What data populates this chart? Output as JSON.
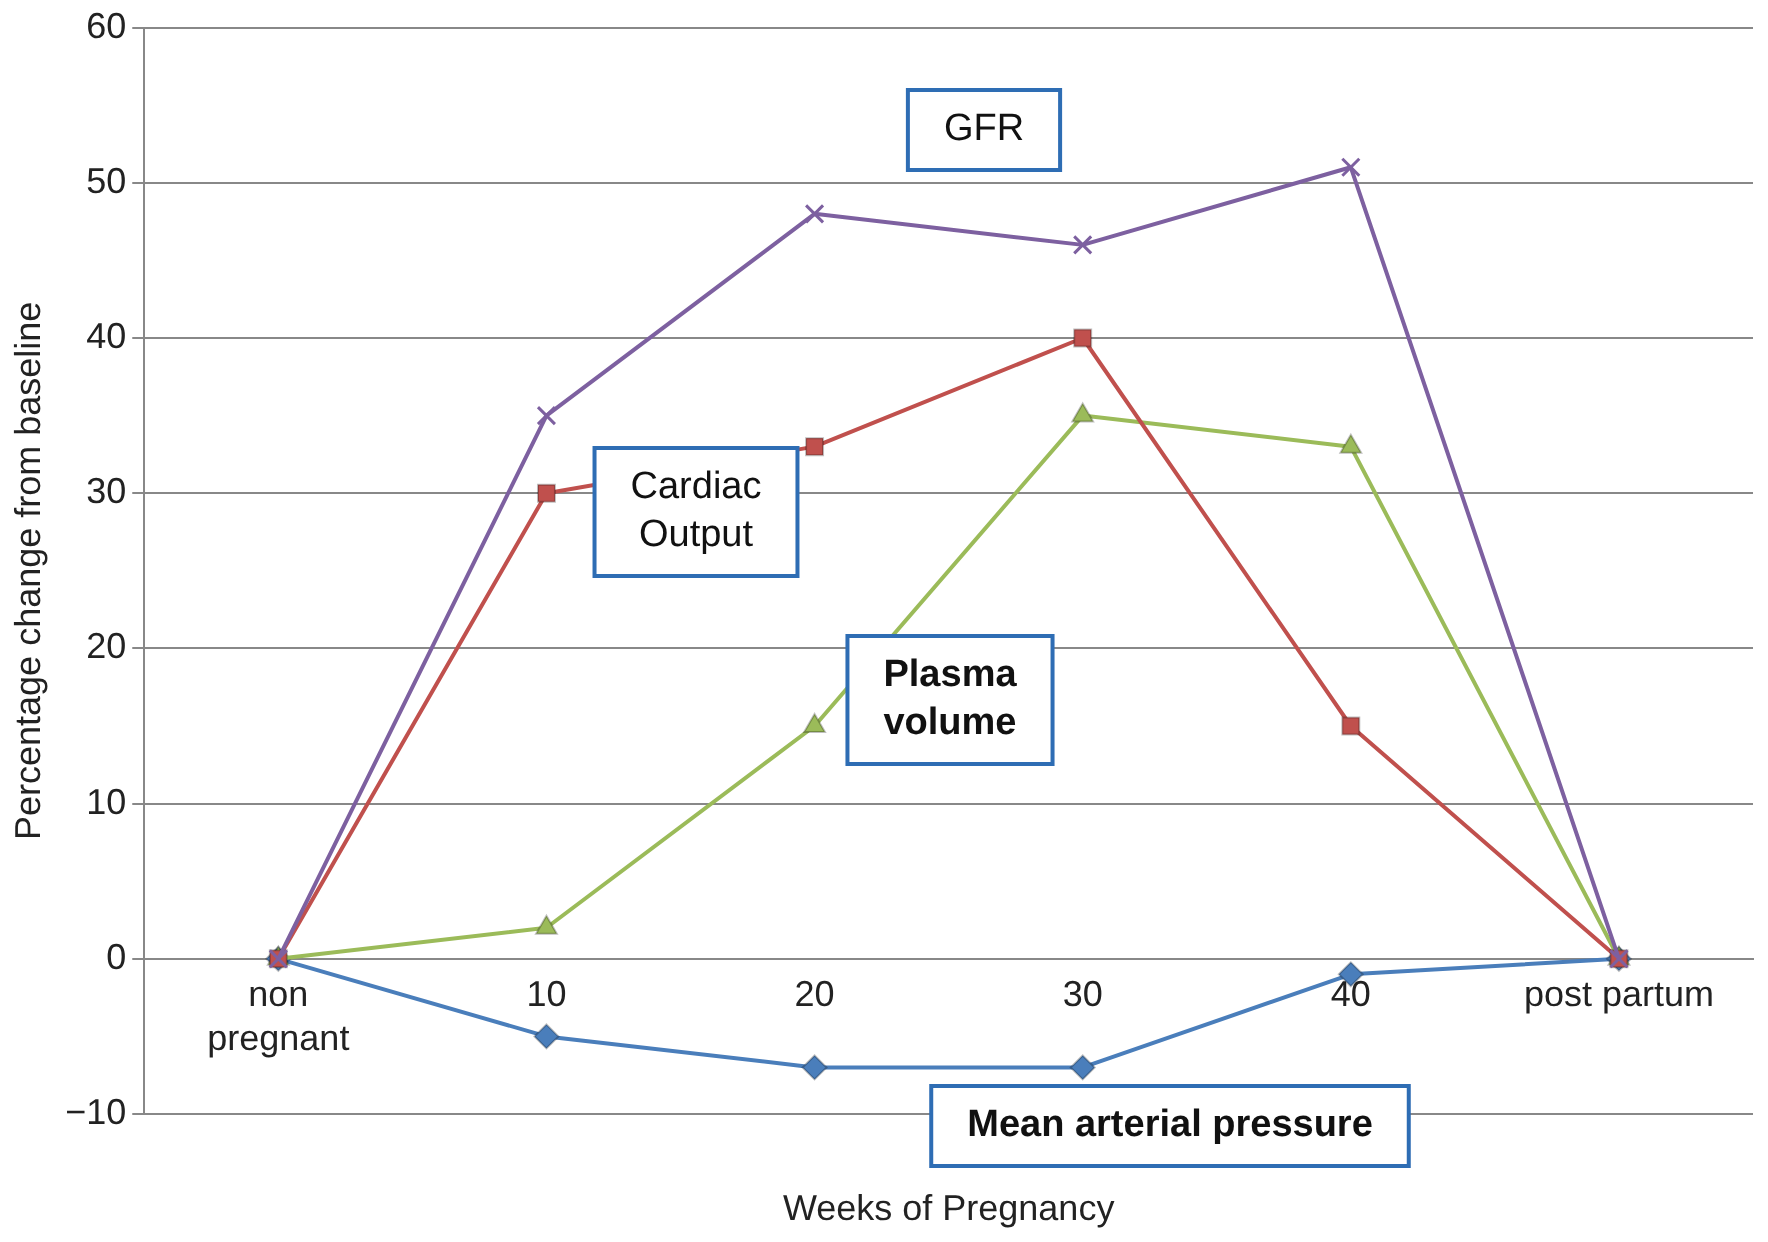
{
  "chart_data": {
    "type": "line",
    "xlabel": "Weeks of Pregnancy",
    "ylabel": "Percentage change from baseline",
    "categories": [
      "non pregnant",
      "10",
      "20",
      "30",
      "40",
      "post partum"
    ],
    "series": [
      {
        "name": "GFR",
        "color": "#7d60a0",
        "marker": "cross",
        "values": [
          0,
          35,
          48,
          46,
          51,
          0
        ]
      },
      {
        "name": "Cardiac Output",
        "color": "#c0504d",
        "marker": "square",
        "values": [
          0,
          30,
          33,
          40,
          15,
          0
        ]
      },
      {
        "name": "Plasma volume",
        "color": "#9bbb59",
        "marker": "triangle",
        "values": [
          0,
          2,
          15,
          35,
          33,
          0
        ]
      },
      {
        "name": "Mean arterial pressure",
        "color": "#4a7ebb",
        "marker": "diamond",
        "values": [
          0,
          -5,
          -7,
          -7,
          -1,
          0
        ]
      }
    ],
    "ylim": [
      -10,
      60
    ],
    "yticks": [
      {
        "value": -10,
        "label": "−10"
      },
      0,
      10,
      20,
      30,
      40,
      50,
      60
    ],
    "grid": "y",
    "legend": false
  }
}
